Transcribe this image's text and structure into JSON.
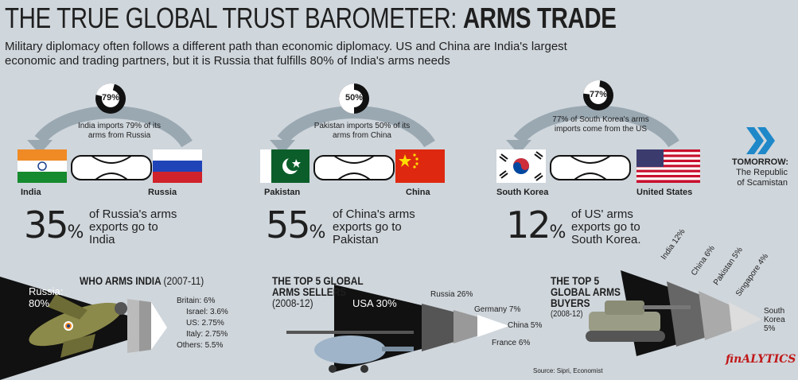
{
  "title": {
    "light": "THE TRUE GLOBAL TRUST BAROMETER: ",
    "bold": "ARMS TRADE"
  },
  "intro": "Military diplomacy often follows a different path than economic diplomacy. US and China are India's largest economic and trading partners, but it is Russia that fulfills  80% of India's arms needs",
  "pairs": [
    {
      "donut": "79%",
      "caption": "India imports 79% of its arms from Russia",
      "left": "India",
      "right": "Russia",
      "big": "35",
      "unit": "%",
      "exports": "of Russia's arms exports go to India",
      "fraction": 0.79
    },
    {
      "donut": "50%",
      "caption": "Pakistan imports 50% of its arms from China",
      "left": "Pakistan",
      "right": "China",
      "big": "55",
      "unit": "%",
      "exports": "of China's arms exports go to Pakistan",
      "fraction": 0.5
    },
    {
      "donut": "77%",
      "caption": "77% of South Korea's arms imports come from the US",
      "left": "South Korea",
      "right": "United States",
      "big": "12",
      "unit": "%",
      "exports": "of US' arms exports go to South Korea.",
      "fraction": 0.77
    }
  ],
  "tomorrow": {
    "label": "TOMORROW:",
    "text": "The Republic of Scamistan"
  },
  "who_arms_india": {
    "title": "WHO ARMS INDIA",
    "years": "(2007-11)",
    "main": "Russia:",
    "main_val": "80%",
    "items": [
      "Britain:  6%",
      "Israel: 3.6%",
      "US: 2.75%",
      "Italy: 2.75%",
      "Others: 5.5%"
    ]
  },
  "sellers": {
    "title1": "THE TOP 5 GLOBAL",
    "title2": "ARMS SELLERS",
    "years": "(2008-12)",
    "main": "USA 30%",
    "items": [
      "Russia 26%",
      "Germany 7%",
      "China 5%",
      "France 6%"
    ]
  },
  "buyers": {
    "title1": "THE TOP 5",
    "title2": "GLOBAL ARMS",
    "title3": "BUYERS",
    "years": "(2008-12)",
    "items": [
      "India 12%",
      "China 6%",
      "Pakistan 5%",
      "Singapore 4%",
      "South Korea 5%"
    ],
    "last1": "South",
    "last2": "Korea",
    "last3": "5%"
  },
  "source": "Source: Sipri, Economist",
  "logo": "finALYTICS",
  "colors": {
    "bg": "#cfd6dc",
    "arrow": "#9aa8b2",
    "dark": "#111111"
  }
}
